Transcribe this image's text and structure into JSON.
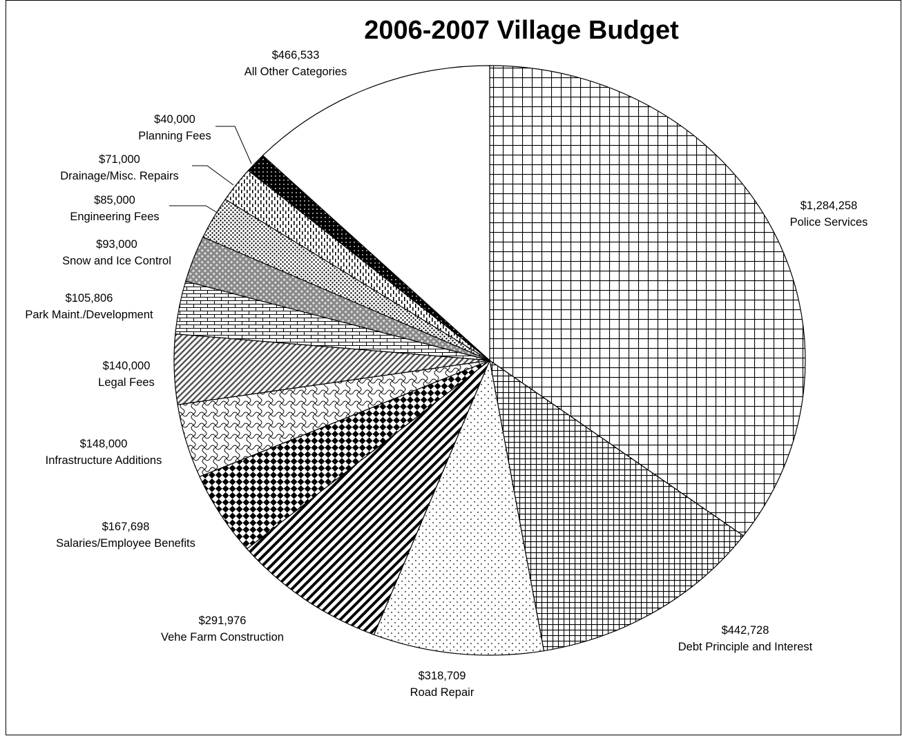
{
  "chart_data": {
    "type": "pie",
    "title": "2006-2007 Village Budget",
    "start": "12 o'clock",
    "direction": "clockwise",
    "slices": [
      {
        "label": "Police Services",
        "value": 1284258,
        "value_text": "$1,284,258",
        "pattern": "large-grid"
      },
      {
        "label": "Debt Principle and Interest",
        "value": 442728,
        "value_text": "$442,728",
        "pattern": "small-grid"
      },
      {
        "label": "Road Repair",
        "value": 318709,
        "value_text": "$318,709",
        "pattern": "dots"
      },
      {
        "label": "Vehe Farm Construction",
        "value": 291976,
        "value_text": "$291,976",
        "pattern": "wide-diagonal"
      },
      {
        "label": "Salaries/Employee Benefits",
        "value": 167698,
        "value_text": "$167,698",
        "pattern": "checker-diamond"
      },
      {
        "label": "Infrastructure Additions",
        "value": 148000,
        "value_text": "$148,000",
        "pattern": "weave"
      },
      {
        "label": "Legal Fees",
        "value": 140000,
        "value_text": "$140,000",
        "pattern": "thin-diagonal"
      },
      {
        "label": "Park Maint./Development",
        "value": 105806,
        "value_text": "$105,806",
        "pattern": "brick"
      },
      {
        "label": "Snow and Ice Control",
        "value": 93000,
        "value_text": "$93,000",
        "pattern": "gray-diamond"
      },
      {
        "label": "Engineering Fees",
        "value": 85000,
        "value_text": "$85,000",
        "pattern": "dense-dots"
      },
      {
        "label": "Drainage/Misc. Repairs",
        "value": 71000,
        "value_text": "$71,000",
        "pattern": "dashed-vertical"
      },
      {
        "label": "Planning Fees",
        "value": 40000,
        "value_text": "$40,000",
        "pattern": "black-dotted"
      },
      {
        "label": "All Other Categories",
        "value": 466533,
        "value_text": "$466,533",
        "pattern": "solid-white"
      }
    ]
  }
}
